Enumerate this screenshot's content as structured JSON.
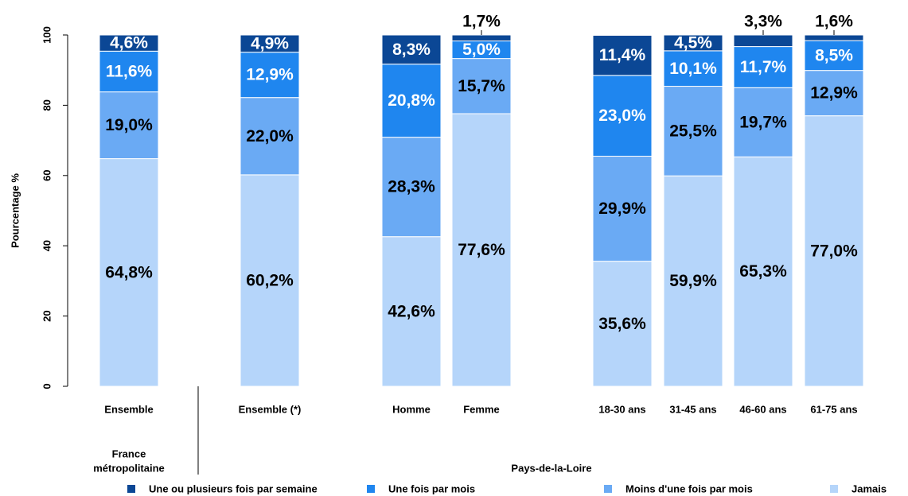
{
  "chart_data": {
    "type": "stacked_bar",
    "y_label": "Pourcentage %",
    "categories": [
      "Ensemble",
      "Ensemble (*)",
      "Homme",
      "Femme",
      "18-30 ans",
      "31-45 ans",
      "46-60 ans",
      "61-75 ans"
    ],
    "group_labels": [
      [
        "France",
        "métropolitaine"
      ],
      [
        "Pays-de-la-Loire"
      ]
    ],
    "ylim": [
      0,
      100
    ],
    "yticks": [
      0,
      20,
      40,
      60,
      80,
      100
    ],
    "grid": false,
    "legend": "bottom",
    "series": [
      {
        "name": "Jamais",
        "color": "#b5d5fa",
        "values": [
          64.8,
          60.2,
          42.6,
          77.6,
          35.6,
          59.9,
          65.3,
          77.0
        ],
        "value_labels": [
          "64,8%",
          "60,2%",
          "42,6%",
          "77,6%",
          "35,6%",
          "59,9%",
          "65,3%",
          "77,0%"
        ]
      },
      {
        "name": "Moins d'une fois par mois",
        "color": "#6aaaf4",
        "values": [
          19.0,
          22.0,
          28.3,
          15.7,
          29.9,
          25.5,
          19.7,
          12.9
        ],
        "value_labels": [
          "19,0%",
          "22,0%",
          "28,3%",
          "15,7%",
          "29,9%",
          "25,5%",
          "19,7%",
          "12,9%"
        ]
      },
      {
        "name": "Une fois par mois",
        "color": "#1f86ef",
        "values": [
          11.6,
          12.9,
          20.8,
          5.0,
          23.0,
          10.1,
          11.7,
          8.5
        ],
        "value_labels": [
          "11,6%",
          "12,9%",
          "20,8%",
          "5,0%",
          "23,0%",
          "10,1%",
          "11,7%",
          "8,5%"
        ]
      },
      {
        "name": "Une ou plusieurs fois par semaine",
        "color": "#0b4795",
        "values": [
          4.6,
          4.9,
          8.3,
          1.7,
          11.4,
          4.5,
          3.3,
          1.6
        ],
        "value_labels": [
          "4,6%",
          "4,9%",
          "8,3%",
          "1,7%",
          "11,4%",
          "4,5%",
          "3,3%",
          "1,6%"
        ]
      }
    ]
  }
}
